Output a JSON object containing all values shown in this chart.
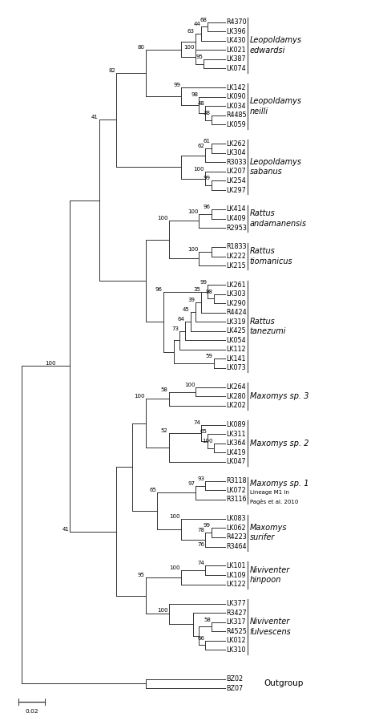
{
  "scale_bar_label": "0.02",
  "outgroup_label": "Outgroup",
  "bg_color": "#ffffff",
  "line_color": "#333333",
  "text_color": "#000000",
  "taxa_font_size": 5.8,
  "species_font_size": 7.5,
  "bootstrap_font_size": 5.0,
  "lw": 0.7,
  "leaves": [
    [
      "R4370",
      0.972
    ],
    [
      "LK396",
      0.959
    ],
    [
      "LK430",
      0.946
    ],
    [
      "LK021",
      0.933
    ],
    [
      "LK387",
      0.92
    ],
    [
      "LK074",
      0.907
    ],
    [
      "LK142",
      0.88
    ],
    [
      "LK090",
      0.867
    ],
    [
      "LK034",
      0.854
    ],
    [
      "R4485",
      0.841
    ],
    [
      "LK059",
      0.828
    ],
    [
      "LK262",
      0.801
    ],
    [
      "LK304",
      0.788
    ],
    [
      "R3033",
      0.775
    ],
    [
      "LK207",
      0.762
    ],
    [
      "LK254",
      0.749
    ],
    [
      "LK297",
      0.736
    ],
    [
      "LK414",
      0.709
    ],
    [
      "LK409",
      0.696
    ],
    [
      "R2953",
      0.683
    ],
    [
      "R1833",
      0.656
    ],
    [
      "LK222",
      0.643
    ],
    [
      "LK215",
      0.63
    ],
    [
      "LK261",
      0.603
    ],
    [
      "LK303",
      0.59
    ],
    [
      "LK290",
      0.577
    ],
    [
      "R4424",
      0.564
    ],
    [
      "LK319",
      0.551
    ],
    [
      "LK425",
      0.538
    ],
    [
      "LK054",
      0.525
    ],
    [
      "LK112",
      0.512
    ],
    [
      "LK141",
      0.499
    ],
    [
      "LK073",
      0.486
    ],
    [
      "LK264",
      0.459
    ],
    [
      "LK280",
      0.446
    ],
    [
      "LK202",
      0.433
    ],
    [
      "LK089",
      0.406
    ],
    [
      "LK311",
      0.393
    ],
    [
      "LK364",
      0.38
    ],
    [
      "LK419",
      0.367
    ],
    [
      "LK047",
      0.354
    ],
    [
      "R3118",
      0.327
    ],
    [
      "LK072",
      0.314
    ],
    [
      "R3116",
      0.301
    ],
    [
      "LK083",
      0.274
    ],
    [
      "LK062",
      0.261
    ],
    [
      "R4223",
      0.248
    ],
    [
      "R3464",
      0.235
    ],
    [
      "LK101",
      0.208
    ],
    [
      "LK109",
      0.195
    ],
    [
      "LK122",
      0.182
    ],
    [
      "LK377",
      0.155
    ],
    [
      "R3427",
      0.142
    ],
    [
      "LK317",
      0.129
    ],
    [
      "R4525",
      0.116
    ],
    [
      "LK012",
      0.103
    ],
    [
      "LK310",
      0.09
    ],
    [
      "BZ02",
      0.049
    ],
    [
      "BZ07",
      0.036
    ]
  ],
  "species_groups": [
    {
      "name": "Leopoldamys\nedwardsi",
      "taxa": [
        "R4370",
        "LK396",
        "LK430",
        "LK021",
        "LK387",
        "LK074"
      ]
    },
    {
      "name": "Leopoldamys\nneilli",
      "taxa": [
        "LK142",
        "LK090",
        "LK034",
        "R4485",
        "LK059"
      ]
    },
    {
      "name": "Leopoldamys\nsabanus",
      "taxa": [
        "LK262",
        "LK304",
        "R3033",
        "LK207",
        "LK254",
        "LK297"
      ]
    },
    {
      "name": "Rattus\nandamanensis",
      "taxa": [
        "LK414",
        "LK409",
        "R2953"
      ]
    },
    {
      "name": "Rattus\ntiomanicus",
      "taxa": [
        "R1833",
        "LK222",
        "LK215"
      ]
    },
    {
      "name": "Rattus\ntanezumi",
      "taxa": [
        "LK261",
        "LK303",
        "LK290",
        "R4424",
        "LK319",
        "LK425",
        "LK054",
        "LK112",
        "LK141",
        "LK073"
      ]
    },
    {
      "name": "Maxomys sp. 3",
      "taxa": [
        "LK264",
        "LK280",
        "LK202"
      ]
    },
    {
      "name": "Maxomys sp. 2",
      "taxa": [
        "LK089",
        "LK311",
        "LK364",
        "LK419",
        "LK047"
      ]
    },
    {
      "name": "Maxomys sp. 1\nLineage M1 in\nPagès et al. 2010",
      "taxa": [
        "R3118",
        "LK072",
        "R3116"
      ]
    },
    {
      "name": "Maxomys\nsurifer",
      "taxa": [
        "LK083",
        "LK062",
        "R4223",
        "R3464"
      ]
    },
    {
      "name": "Niviventer\nhinpoon",
      "taxa": [
        "LK101",
        "LK109",
        "LK122"
      ]
    },
    {
      "name": "Niviventer\nfulvescens",
      "taxa": [
        "LK377",
        "R3427",
        "LK317",
        "R4525",
        "LK012",
        "LK310"
      ]
    }
  ]
}
